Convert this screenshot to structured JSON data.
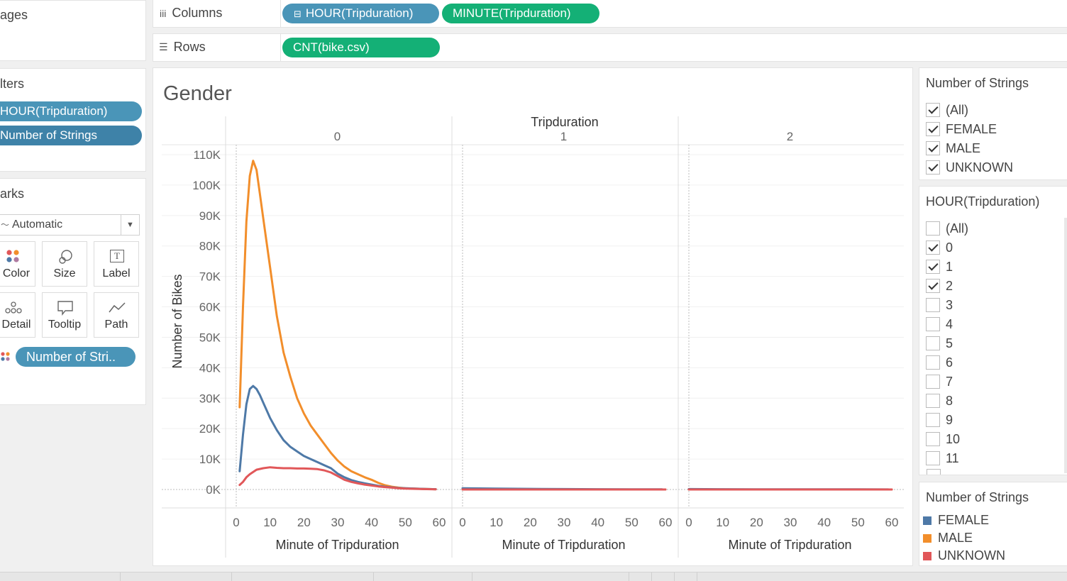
{
  "left_panel": {
    "pages_title": "ages",
    "filters_title": "lters",
    "filters": [
      "HOUR(Tripduration)",
      "Number of Strings"
    ],
    "marks_title": "arks",
    "mark_type": "Automatic",
    "mark_cards": [
      {
        "label": "Color",
        "icon": "color-dots-icon"
      },
      {
        "label": "Size",
        "icon": "size-icon"
      },
      {
        "label": "Label",
        "icon": "text-label-icon"
      },
      {
        "label": "Detail",
        "icon": "detail-dots-icon"
      },
      {
        "label": "Tooltip",
        "icon": "tooltip-icon"
      },
      {
        "label": "Path",
        "icon": "path-icon"
      }
    ],
    "color_pill": "Number of Stri.."
  },
  "shelves": {
    "columns_label": "Columns",
    "columns": [
      "HOUR(Tripduration)",
      "MINUTE(Tripduration)"
    ],
    "rows_label": "Rows",
    "rows": [
      "CNT(bike.csv)"
    ]
  },
  "sheet": {
    "title": "Gender"
  },
  "right_panel": {
    "strings_filter": {
      "title": "Number of Strings",
      "items": [
        {
          "label": "(All)",
          "checked": true
        },
        {
          "label": "FEMALE",
          "checked": true
        },
        {
          "label": "MALE",
          "checked": true
        },
        {
          "label": "UNKNOWN",
          "checked": true
        }
      ]
    },
    "hour_filter": {
      "title": "HOUR(Tripduration)",
      "items": [
        {
          "label": "(All)",
          "checked": false
        },
        {
          "label": "0",
          "checked": true
        },
        {
          "label": "1",
          "checked": true
        },
        {
          "label": "2",
          "checked": true
        },
        {
          "label": "3",
          "checked": false
        },
        {
          "label": "4",
          "checked": false
        },
        {
          "label": "5",
          "checked": false
        },
        {
          "label": "6",
          "checked": false
        },
        {
          "label": "7",
          "checked": false
        },
        {
          "label": "8",
          "checked": false
        },
        {
          "label": "9",
          "checked": false
        },
        {
          "label": "10",
          "checked": false
        },
        {
          "label": "11",
          "checked": false
        }
      ]
    },
    "legend": {
      "title": "Number of Strings",
      "items": [
        {
          "label": "FEMALE",
          "color": "#4e79a7"
        },
        {
          "label": "MALE",
          "color": "#f28e2b"
        },
        {
          "label": "UNKNOWN",
          "color": "#e15759"
        }
      ]
    }
  },
  "chart_data": {
    "type": "line",
    "header_title": "Tripduration",
    "panels": [
      "0",
      "1",
      "2"
    ],
    "xlabel": "Minute of Tripduration",
    "ylabel": "Number of Bikes",
    "xlim": [
      0,
      60
    ],
    "xticks": [
      0,
      10,
      20,
      30,
      40,
      50,
      60
    ],
    "ylim": [
      0,
      110000
    ],
    "yticks": [
      0,
      10000,
      20000,
      30000,
      40000,
      50000,
      60000,
      70000,
      80000,
      90000,
      100000,
      110000
    ],
    "ytick_labels": [
      "0K",
      "10K",
      "20K",
      "30K",
      "40K",
      "50K",
      "60K",
      "70K",
      "80K",
      "90K",
      "100K",
      "110K"
    ],
    "series": [
      {
        "name": "MALE",
        "color": "#f28e2b",
        "panels": [
          {
            "x": [
              1,
              2,
              3,
              4,
              5,
              6,
              7,
              8,
              10,
              12,
              14,
              16,
              18,
              20,
              22,
              24,
              26,
              28,
              30,
              32,
              34,
              36,
              38,
              40,
              42,
              44,
              46,
              48,
              50,
              55,
              59
            ],
            "y": [
              27000,
              60000,
              88000,
              103000,
              108000,
              105000,
              97000,
              89000,
              73000,
              57000,
              45000,
              37000,
              30000,
              25000,
              21000,
              18000,
              15000,
              12000,
              9500,
              7500,
              6000,
              5000,
              4000,
              3200,
              2200,
              1400,
              900,
              600,
              400,
              200,
              100
            ]
          },
          {
            "x": [
              0,
              60
            ],
            "y": [
              0,
              0
            ]
          },
          {
            "x": [
              0,
              60
            ],
            "y": [
              0,
              0
            ]
          }
        ]
      },
      {
        "name": "FEMALE",
        "color": "#4e79a7",
        "panels": [
          {
            "x": [
              1,
              2,
              3,
              4,
              5,
              6,
              7,
              8,
              10,
              12,
              14,
              16,
              18,
              20,
              22,
              24,
              26,
              28,
              30,
              32,
              34,
              36,
              38,
              40,
              42,
              44,
              46,
              48,
              50,
              55,
              59
            ],
            "y": [
              6000,
              18000,
              28000,
              33000,
              34000,
              33000,
              31000,
              28500,
              23500,
              19500,
              16200,
              14000,
              12500,
              11000,
              10000,
              9000,
              8000,
              7000,
              5200,
              4000,
              3100,
              2500,
              2000,
              1600,
              1200,
              900,
              700,
              500,
              400,
              200,
              100
            ]
          },
          {
            "x": [
              0,
              10,
              20,
              30,
              40,
              50,
              59
            ],
            "y": [
              400,
              300,
              200,
              150,
              100,
              80,
              60
            ]
          },
          {
            "x": [
              0,
              10,
              20,
              30,
              40,
              50,
              59
            ],
            "y": [
              150,
              100,
              80,
              60,
              50,
              40,
              30
            ]
          }
        ]
      },
      {
        "name": "UNKNOWN",
        "color": "#e15759",
        "panels": [
          {
            "x": [
              1,
              2,
              3,
              4,
              6,
              8,
              10,
              12,
              14,
              16,
              18,
              20,
              22,
              24,
              26,
              28,
              30,
              32,
              34,
              36,
              38,
              40,
              42,
              44,
              46,
              48,
              50,
              55,
              59
            ],
            "y": [
              1500,
              2500,
              4000,
              5000,
              6500,
              7000,
              7300,
              7100,
              7000,
              7000,
              6900,
              6900,
              6800,
              6700,
              6300,
              5600,
              4400,
              3200,
              2500,
              2000,
              1600,
              1300,
              1000,
              800,
              600,
              400,
              300,
              150,
              80
            ]
          },
          {
            "x": [
              0,
              60
            ],
            "y": [
              0,
              0
            ]
          },
          {
            "x": [
              0,
              60
            ],
            "y": [
              0,
              0
            ]
          }
        ]
      }
    ]
  }
}
